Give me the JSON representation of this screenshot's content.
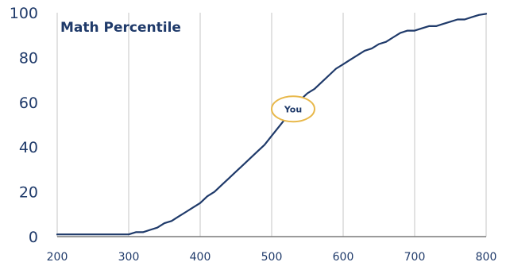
{
  "chart_data": {
    "type": "line",
    "title": "Math Percentile",
    "xlabel": "",
    "ylabel": "",
    "xlim": [
      200,
      800
    ],
    "ylim": [
      0,
      100
    ],
    "x_ticks": [
      200,
      300,
      400,
      500,
      600,
      700,
      800
    ],
    "y_ticks": [
      0,
      20,
      40,
      60,
      80,
      100
    ],
    "grid": "vertical",
    "colors": {
      "line": "#1f3a6a",
      "grid": "#d9d9d9",
      "marker_border": "#e8b84a",
      "text": "#1f3a6a"
    },
    "series": [
      {
        "x": [
          200,
          210,
          220,
          230,
          240,
          250,
          260,
          270,
          280,
          290,
          300,
          310,
          320,
          330,
          340,
          350,
          360,
          370,
          380,
          390,
          400,
          410,
          420,
          430,
          440,
          450,
          460,
          470,
          480,
          490,
          500,
          510,
          520,
          530,
          540,
          550,
          560,
          570,
          580,
          590,
          600,
          610,
          620,
          630,
          640,
          650,
          660,
          670,
          680,
          690,
          700,
          710,
          720,
          730,
          740,
          750,
          760,
          770,
          780,
          790,
          800
        ],
        "y": [
          1,
          1,
          1,
          1,
          1,
          1,
          1,
          1,
          1,
          1,
          1,
          2,
          2,
          3,
          4,
          6,
          7,
          9,
          11,
          13,
          15,
          18,
          20,
          23,
          26,
          29,
          32,
          35,
          38,
          41,
          45,
          49,
          53,
          57,
          61,
          64,
          66,
          69,
          72,
          75,
          77,
          79,
          81,
          83,
          84,
          86,
          87,
          89,
          91,
          92,
          92,
          93,
          94,
          94,
          95,
          96,
          97,
          97,
          98,
          99,
          99.5
        ]
      }
    ],
    "annotation": {
      "label": "You",
      "x": 530,
      "y": 57
    }
  }
}
